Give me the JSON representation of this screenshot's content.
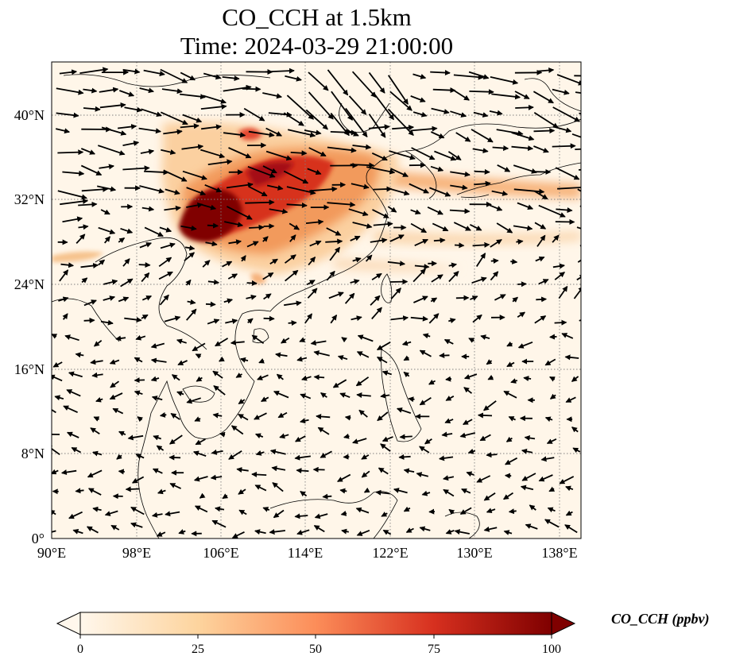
{
  "figure": {
    "title_line1": "CO_CCH at 1.5km",
    "title_line2": "Time: 2024-03-29 21:00:00"
  },
  "map": {
    "lon_range": [
      90,
      140
    ],
    "lat_range": [
      0,
      45
    ],
    "lon_ticks": [
      "90°E",
      "98°E",
      "106°E",
      "114°E",
      "122°E",
      "130°E",
      "138°E"
    ],
    "lat_ticks": [
      "0°",
      "8°N",
      "16°N",
      "24°N",
      "32°N",
      "40°N"
    ],
    "grid": "dotted gray",
    "field": "CO_CCH concentration with wind vectors"
  },
  "colorbar": {
    "label": "CO_CCH (ppbv)",
    "ticks": [
      "0",
      "25",
      "50",
      "75",
      "100"
    ],
    "range": [
      0,
      100
    ],
    "colormap": "OrRd",
    "extend": "both"
  }
}
